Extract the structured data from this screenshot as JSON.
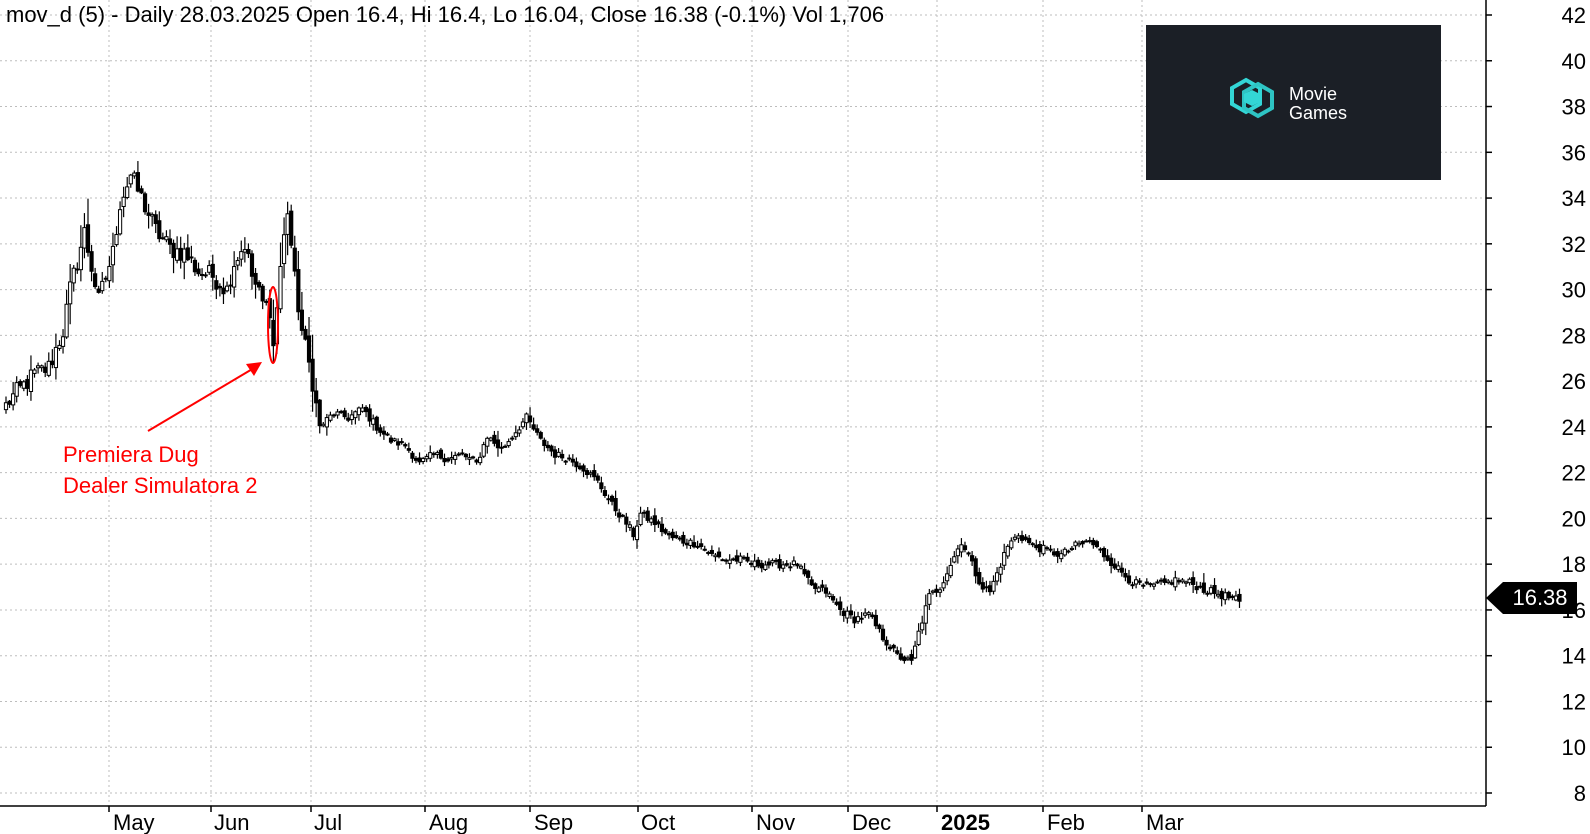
{
  "chart_data": {
    "type": "candlestick",
    "title": "mov_d (5) - Daily 28.03.2025 Open 16.4, Hi 16.4, Lo 16.04, Close 16.38 (-0.1%) Vol 1,706",
    "last_price_label": "16.38",
    "last_price": 16.38,
    "y_ticks": [
      8,
      10,
      12,
      14,
      16,
      18,
      20,
      22,
      24,
      26,
      28,
      30,
      32,
      34,
      36,
      38,
      40,
      42
    ],
    "ylim": [
      7,
      43
    ],
    "x_months": [
      {
        "label": "May",
        "bold": false
      },
      {
        "label": "Jun",
        "bold": false
      },
      {
        "label": "Jul",
        "bold": false
      },
      {
        "label": "Aug",
        "bold": false
      },
      {
        "label": "Sep",
        "bold": false
      },
      {
        "label": "Oct",
        "bold": false
      },
      {
        "label": "Nov",
        "bold": false
      },
      {
        "label": "Dec",
        "bold": false
      },
      {
        "label": "2025",
        "bold": true
      },
      {
        "label": "Feb",
        "bold": false
      },
      {
        "label": "Mar",
        "bold": false
      }
    ],
    "grid": true,
    "annotation": {
      "lines": [
        "Premiera Dug",
        "Dealer Simulatora 2"
      ],
      "color": "#ff0000"
    },
    "logo": {
      "line1": "Movie",
      "line2": "Games",
      "bg": "#1b1f26",
      "accent": "#33d6d6"
    },
    "price_anchors": [
      [
        0,
        25.0
      ],
      [
        8,
        26.3
      ],
      [
        12,
        26.6
      ],
      [
        16,
        28.2
      ],
      [
        18,
        30.0
      ],
      [
        22,
        32.5
      ],
      [
        26,
        29.5
      ],
      [
        30,
        31.6
      ],
      [
        32,
        33.8
      ],
      [
        35,
        35.0
      ],
      [
        38,
        34.0
      ],
      [
        42,
        32.6
      ],
      [
        46,
        31.8
      ],
      [
        50,
        31.6
      ],
      [
        54,
        30.8
      ],
      [
        58,
        30.6
      ],
      [
        62,
        30.0
      ],
      [
        64,
        31.2
      ],
      [
        67,
        32.0
      ],
      [
        69,
        30.6
      ],
      [
        72,
        29.4
      ],
      [
        74,
        29.2
      ],
      [
        75,
        27.5
      ],
      [
        77,
        31.0
      ],
      [
        79,
        33.5
      ],
      [
        81,
        30.4
      ],
      [
        83,
        28.2
      ],
      [
        86,
        26.0
      ],
      [
        88,
        24.0
      ],
      [
        92,
        24.6
      ],
      [
        96,
        24.4
      ],
      [
        100,
        24.8
      ],
      [
        104,
        24.0
      ],
      [
        108,
        23.4
      ],
      [
        112,
        23.2
      ],
      [
        116,
        22.4
      ],
      [
        120,
        22.8
      ],
      [
        124,
        22.6
      ],
      [
        128,
        22.8
      ],
      [
        132,
        22.4
      ],
      [
        135,
        23.6
      ],
      [
        139,
        23.0
      ],
      [
        143,
        23.8
      ],
      [
        146,
        24.4
      ],
      [
        150,
        23.4
      ],
      [
        154,
        22.8
      ],
      [
        158,
        22.6
      ],
      [
        162,
        22.2
      ],
      [
        166,
        21.6
      ],
      [
        170,
        20.6
      ],
      [
        174,
        19.8
      ],
      [
        176,
        19.3
      ],
      [
        178,
        20.2
      ],
      [
        182,
        19.8
      ],
      [
        186,
        19.2
      ],
      [
        190,
        19.0
      ],
      [
        194,
        18.9
      ],
      [
        198,
        18.4
      ],
      [
        202,
        18.2
      ],
      [
        206,
        18.2
      ],
      [
        210,
        18.0
      ],
      [
        214,
        18.0
      ],
      [
        218,
        18.0
      ],
      [
        222,
        18.0
      ],
      [
        226,
        17.0
      ],
      [
        230,
        16.8
      ],
      [
        234,
        16.0
      ],
      [
        238,
        15.6
      ],
      [
        242,
        15.8
      ],
      [
        246,
        14.8
      ],
      [
        250,
        14.0
      ],
      [
        254,
        13.7
      ],
      [
        256,
        15.0
      ],
      [
        259,
        16.6
      ],
      [
        262,
        17.0
      ],
      [
        265,
        18.0
      ],
      [
        268,
        19.0
      ],
      [
        270,
        18.4
      ],
      [
        272,
        17.6
      ],
      [
        274,
        17.0
      ],
      [
        276,
        16.8
      ],
      [
        278,
        17.6
      ],
      [
        281,
        18.8
      ],
      [
        284,
        19.3
      ],
      [
        288,
        18.8
      ],
      [
        292,
        18.6
      ],
      [
        296,
        18.4
      ],
      [
        300,
        18.8
      ],
      [
        304,
        19.0
      ],
      [
        308,
        18.4
      ],
      [
        312,
        17.8
      ],
      [
        316,
        17.2
      ],
      [
        320,
        17.0
      ],
      [
        324,
        17.1
      ],
      [
        328,
        17.3
      ],
      [
        332,
        17.2
      ],
      [
        336,
        16.9
      ],
      [
        340,
        16.7
      ],
      [
        344,
        16.5
      ],
      [
        346,
        16.38
      ]
    ]
  }
}
